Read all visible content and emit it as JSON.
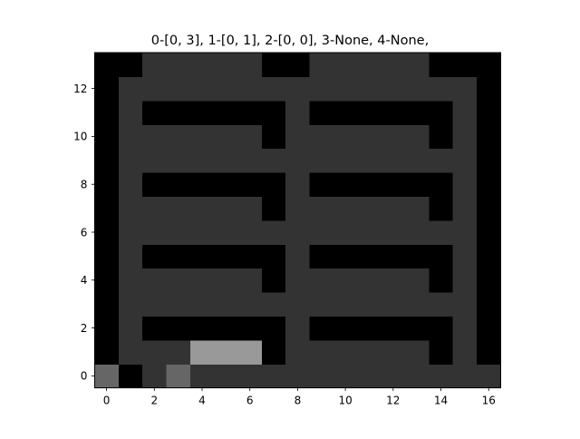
{
  "title": "0-[0, 3], 1-[0, 1], 2-[0, 0], 3-None, 4-None,",
  "colors": {
    "wall": "#000000",
    "floor": "#333333",
    "agent_marker": "#666666",
    "highlight": "#999999"
  },
  "grid": {
    "cols": 17,
    "rows": 14,
    "row_order": "bottom-to-top",
    "legend": "0 = wall, 1 = floor, 2 = marker, 3 = highlight",
    "cells": [
      [
        2,
        0,
        1,
        2,
        1,
        1,
        1,
        1,
        1,
        1,
        1,
        1,
        1,
        1,
        1,
        1,
        1
      ],
      [
        0,
        1,
        1,
        1,
        3,
        3,
        3,
        0,
        1,
        1,
        1,
        1,
        1,
        1,
        0,
        1,
        0
      ],
      [
        0,
        1,
        0,
        0,
        0,
        0,
        0,
        0,
        1,
        0,
        0,
        0,
        0,
        0,
        0,
        1,
        0
      ],
      [
        0,
        1,
        1,
        1,
        1,
        1,
        1,
        1,
        1,
        1,
        1,
        1,
        1,
        1,
        1,
        1,
        0
      ],
      [
        0,
        1,
        1,
        1,
        1,
        1,
        1,
        0,
        1,
        1,
        1,
        1,
        1,
        1,
        0,
        1,
        0
      ],
      [
        0,
        1,
        0,
        0,
        0,
        0,
        0,
        0,
        1,
        0,
        0,
        0,
        0,
        0,
        0,
        1,
        0
      ],
      [
        0,
        1,
        1,
        1,
        1,
        1,
        1,
        1,
        1,
        1,
        1,
        1,
        1,
        1,
        1,
        1,
        0
      ],
      [
        0,
        1,
        1,
        1,
        1,
        1,
        1,
        0,
        1,
        1,
        1,
        1,
        1,
        1,
        0,
        1,
        0
      ],
      [
        0,
        1,
        0,
        0,
        0,
        0,
        0,
        0,
        1,
        0,
        0,
        0,
        0,
        0,
        0,
        1,
        0
      ],
      [
        0,
        1,
        1,
        1,
        1,
        1,
        1,
        1,
        1,
        1,
        1,
        1,
        1,
        1,
        1,
        1,
        0
      ],
      [
        0,
        1,
        1,
        1,
        1,
        1,
        1,
        0,
        1,
        1,
        1,
        1,
        1,
        1,
        0,
        1,
        0
      ],
      [
        0,
        1,
        0,
        0,
        0,
        0,
        0,
        0,
        1,
        0,
        0,
        0,
        0,
        0,
        0,
        1,
        0
      ],
      [
        0,
        1,
        1,
        1,
        1,
        1,
        1,
        1,
        1,
        1,
        1,
        1,
        1,
        1,
        1,
        1,
        0
      ],
      [
        0,
        0,
        1,
        1,
        1,
        1,
        1,
        0,
        0,
        1,
        1,
        1,
        1,
        1,
        0,
        0,
        0
      ]
    ]
  },
  "axes": {
    "x_ticks": [
      "0",
      "2",
      "4",
      "6",
      "8",
      "10",
      "12",
      "14",
      "16"
    ],
    "y_ticks": [
      "0",
      "2",
      "4",
      "6",
      "8",
      "10",
      "12"
    ]
  }
}
